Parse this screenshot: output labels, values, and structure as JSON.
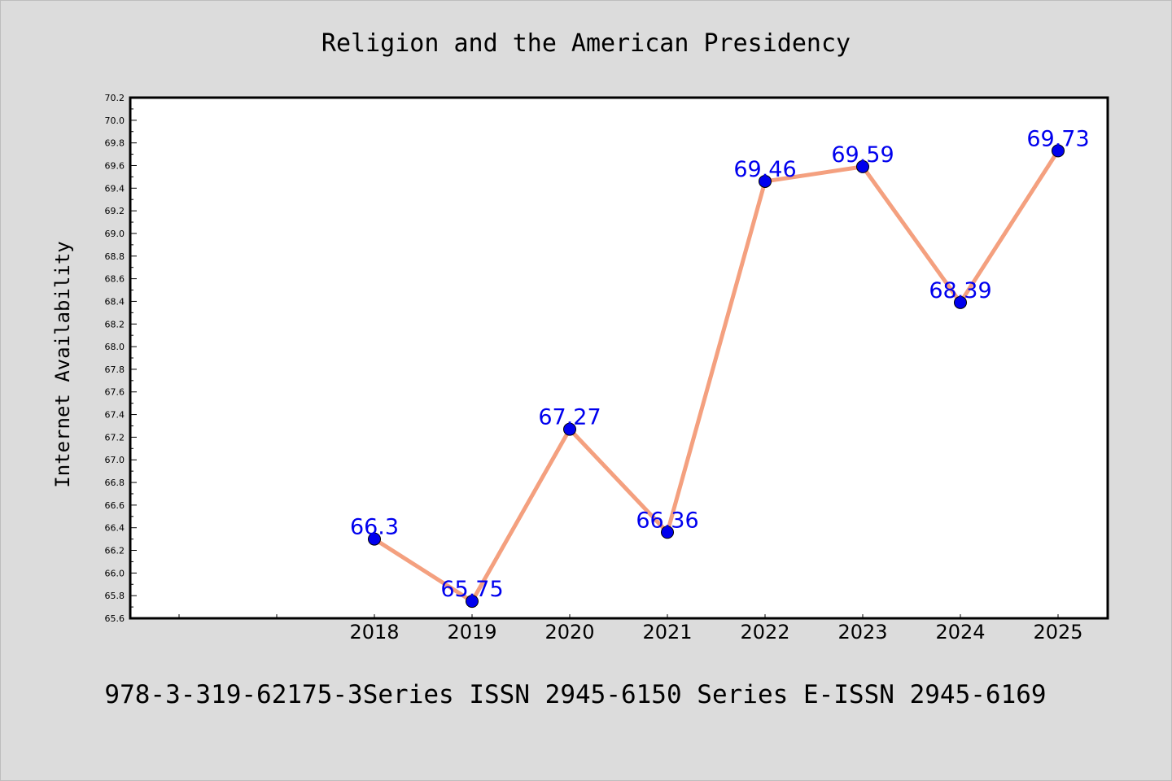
{
  "chart_data": {
    "type": "line",
    "title": "Religion and the American Presidency",
    "ylabel": "Internet Availability",
    "xlabel": "",
    "categories": [
      "",
      "",
      "2018",
      "2019",
      "2020",
      "2021",
      "2022",
      "2023",
      "2024",
      "2025"
    ],
    "series": [
      {
        "values": [
          null,
          null,
          66.3,
          65.75,
          67.27,
          66.36,
          69.46,
          69.59,
          68.39,
          69.73
        ],
        "labels": [
          "",
          "",
          "66.3",
          "65.75",
          "67.27",
          "66.36",
          "69.46",
          "69.59",
          "68.39",
          "69.73"
        ]
      }
    ],
    "ylim": [
      65.6,
      70.2
    ],
    "ytick_step": 0.2,
    "yticks": [
      "65.6",
      "65.8",
      "66.0",
      "66.2",
      "66.4",
      "66.6",
      "66.8",
      "67.0",
      "67.2",
      "67.4",
      "67.6",
      "67.8",
      "68.0",
      "68.2",
      "68.4",
      "68.6",
      "68.8",
      "69.0",
      "69.2",
      "69.4",
      "69.6",
      "69.8",
      "70.0",
      "70.2"
    ],
    "grid": false,
    "legend": "none",
    "colors": {
      "line": "#f4a07f",
      "marker": "#0000ee",
      "label": "#0000ee",
      "plot_background": "#ffffff",
      "page_background": "#dcdcdc",
      "axis": "#000000"
    }
  },
  "footer": {
    "text": "978-3-319-62175-3Series ISSN 2945-6150 Series E-ISSN 2945-6169"
  }
}
